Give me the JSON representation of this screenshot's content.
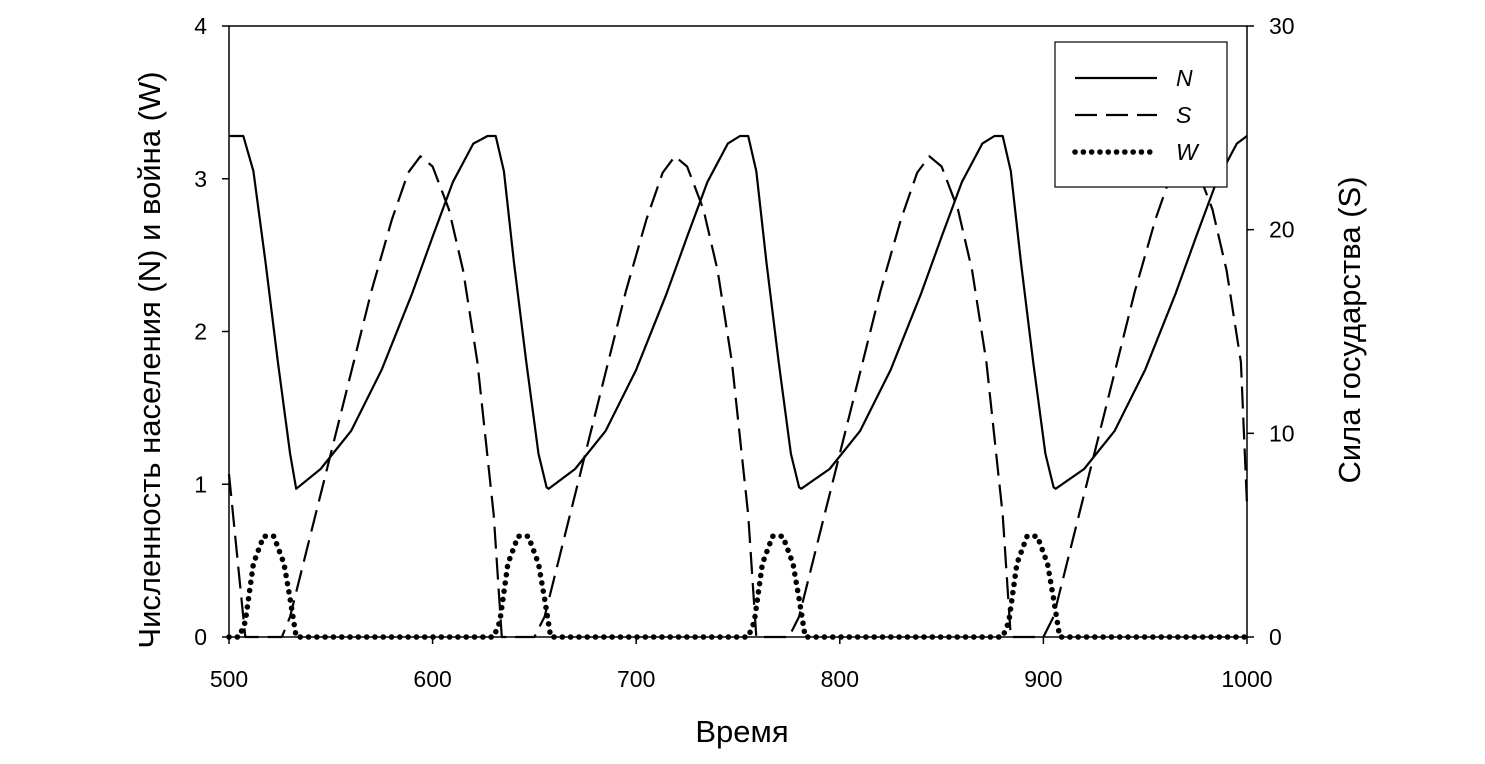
{
  "chart_data": {
    "type": "line",
    "xlabel": "Время",
    "ylabel_left": "Численность населения (N) и война (W)",
    "ylabel_right": "Сила государства (S)",
    "xlim": [
      500,
      1000
    ],
    "ylim_left": [
      0,
      4
    ],
    "ylim_right": [
      0,
      30
    ],
    "x_ticks": [
      "500",
      "600",
      "700",
      "800",
      "900",
      "1000"
    ],
    "y_left_ticks": [
      "0",
      "1",
      "2",
      "3",
      "4"
    ],
    "y_right_ticks": [
      "0",
      "10",
      "20",
      "30"
    ],
    "grid": false,
    "legend_position": "top-right",
    "series": [
      {
        "name": "N",
        "axis": "left",
        "style": "solid",
        "x": [
          500,
          507,
          512,
          518,
          524,
          530,
          533,
          545,
          560,
          575,
          590,
          600,
          610,
          620,
          627,
          631,
          635,
          640,
          646,
          652,
          656,
          657,
          670,
          685,
          700,
          715,
          725,
          735,
          745,
          751,
          755,
          759,
          764,
          770,
          776,
          780,
          781,
          795,
          810,
          825,
          840,
          850,
          860,
          870,
          876,
          880,
          884,
          889,
          895,
          901,
          905,
          906,
          920,
          935,
          950,
          965,
          975,
          985,
          995,
          1000
        ],
        "values": [
          3.28,
          3.28,
          3.05,
          2.45,
          1.8,
          1.2,
          0.97,
          1.1,
          1.35,
          1.75,
          2.25,
          2.62,
          2.98,
          3.23,
          3.28,
          3.28,
          3.05,
          2.45,
          1.8,
          1.2,
          0.98,
          0.97,
          1.1,
          1.35,
          1.75,
          2.25,
          2.62,
          2.98,
          3.23,
          3.28,
          3.28,
          3.05,
          2.45,
          1.8,
          1.2,
          0.98,
          0.97,
          1.1,
          1.35,
          1.75,
          2.25,
          2.62,
          2.98,
          3.23,
          3.28,
          3.28,
          3.05,
          2.45,
          1.8,
          1.2,
          0.98,
          0.97,
          1.1,
          1.35,
          1.75,
          2.25,
          2.62,
          2.98,
          3.23,
          3.28
        ]
      },
      {
        "name": "S",
        "axis": "right",
        "style": "dashed",
        "x": [
          500,
          503,
          506,
          508,
          510,
          520,
          526,
          530,
          540,
          555,
          570,
          580,
          588,
          594,
          600,
          608,
          615,
          622,
          630,
          634,
          640,
          650,
          655,
          665,
          680,
          695,
          705,
          713,
          719,
          725,
          733,
          740,
          747,
          755,
          759,
          765,
          775,
          780,
          790,
          805,
          820,
          830,
          838,
          844,
          850,
          858,
          865,
          872,
          880,
          884,
          890,
          900,
          905,
          915,
          930,
          945,
          955,
          963,
          969,
          975,
          983,
          990,
          997,
          1000
        ],
        "values": [
          8,
          5,
          2,
          0,
          0,
          0,
          0,
          1,
          5,
          11,
          17,
          20.5,
          22.8,
          23.6,
          23.1,
          21,
          18,
          13.5,
          6,
          0,
          0,
          0,
          1,
          5,
          11,
          17,
          20.5,
          22.8,
          23.6,
          23.1,
          21,
          18,
          13.5,
          6,
          0,
          0,
          0,
          1,
          5,
          11,
          17,
          20.5,
          22.8,
          23.6,
          23.1,
          21,
          18,
          13.5,
          6,
          0,
          0,
          0,
          1,
          5,
          11,
          17,
          20.5,
          22.8,
          23.6,
          23.1,
          21,
          18,
          13.5,
          6.5
        ]
      },
      {
        "name": "W",
        "axis": "left",
        "style": "dotted",
        "x": [
          500,
          505,
          508,
          512,
          517,
          522,
          527,
          530,
          533,
          540,
          560,
          580,
          600,
          620,
          630,
          633,
          637,
          642,
          647,
          652,
          655,
          658,
          665,
          685,
          705,
          725,
          745,
          755,
          758,
          762,
          767,
          772,
          777,
          780,
          783,
          790,
          810,
          830,
          850,
          870,
          880,
          883,
          887,
          892,
          897,
          902,
          905,
          908,
          915,
          935,
          955,
          975,
          1000
        ],
        "values": [
          0,
          0,
          0.1,
          0.48,
          0.66,
          0.66,
          0.48,
          0.25,
          0,
          0,
          0,
          0,
          0,
          0,
          0,
          0.1,
          0.48,
          0.66,
          0.66,
          0.48,
          0.25,
          0,
          0,
          0,
          0,
          0,
          0,
          0,
          0.1,
          0.48,
          0.66,
          0.66,
          0.48,
          0.25,
          0,
          0,
          0,
          0,
          0,
          0,
          0,
          0.1,
          0.48,
          0.66,
          0.66,
          0.48,
          0.25,
          0,
          0,
          0,
          0,
          0,
          0
        ]
      }
    ],
    "colors": {
      "line": "#000000",
      "background": "#ffffff"
    }
  }
}
